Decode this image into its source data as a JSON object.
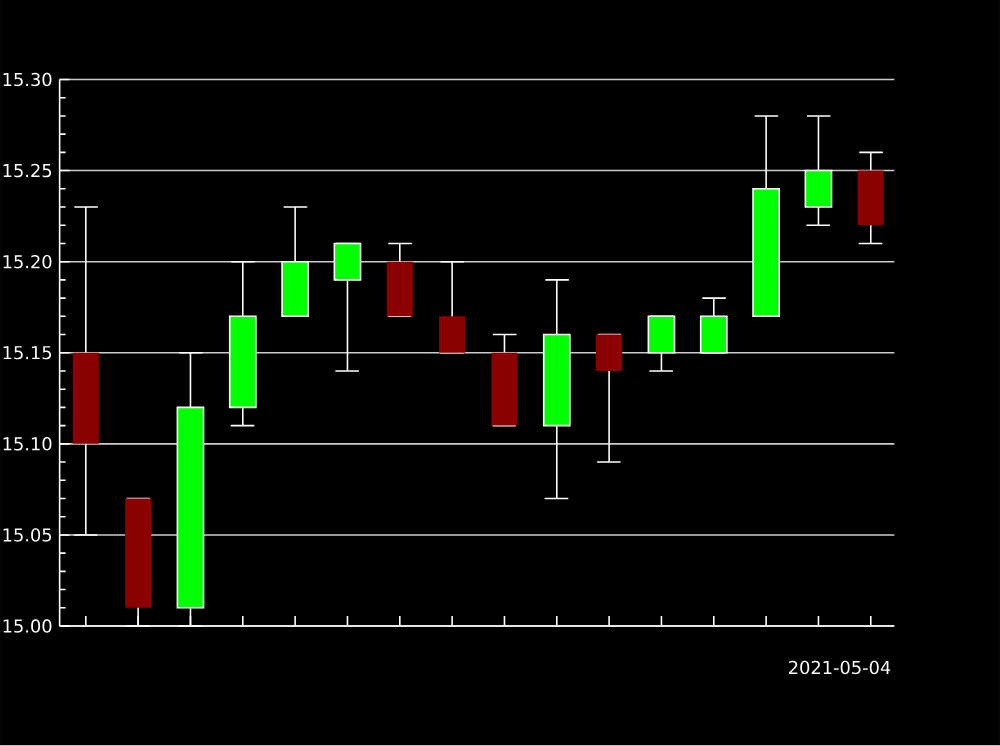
{
  "chart_data": {
    "type": "candlestick",
    "xlabel": "2021-05-04",
    "categories": [
      null,
      null,
      null,
      null,
      null,
      null,
      null,
      null,
      null,
      null,
      null,
      null,
      null,
      null,
      null,
      null
    ],
    "ohlc": [
      [
        15.15,
        15.23,
        15.05,
        15.1
      ],
      [
        15.07,
        15.07,
        15.0,
        15.01
      ],
      [
        15.01,
        15.15,
        15.0,
        15.12
      ],
      [
        15.12,
        15.2,
        15.11,
        15.17
      ],
      [
        15.17,
        15.23,
        15.17,
        15.2
      ],
      [
        15.19,
        15.21,
        15.14,
        15.21
      ],
      [
        15.2,
        15.21,
        15.17,
        15.17
      ],
      [
        15.17,
        15.2,
        15.15,
        15.15
      ],
      [
        15.15,
        15.16,
        15.11,
        15.11
      ],
      [
        15.11,
        15.19,
        15.07,
        15.16
      ],
      [
        15.16,
        15.16,
        15.09,
        15.14
      ],
      [
        15.15,
        15.17,
        15.14,
        15.17
      ],
      [
        15.15,
        15.18,
        15.15,
        15.17
      ],
      [
        15.17,
        15.28,
        15.17,
        15.24
      ],
      [
        15.23,
        15.28,
        15.22,
        15.25
      ],
      [
        15.25,
        15.26,
        15.21,
        15.22
      ]
    ],
    "colors": [
      "#8b0000",
      "#8b0000",
      "#00ff00",
      "#00ff00",
      "#00ff00",
      "#00ff00",
      "#8b0000",
      "#8b0000",
      "#8b0000",
      "#00ff00",
      "#8b0000",
      "#00ff00",
      "#00ff00",
      "#00ff00",
      "#00ff00",
      "#8b0000"
    ],
    "ylim": [
      15.0,
      15.3
    ],
    "yticks": [
      {
        "value": 15.0,
        "label": "15.00"
      },
      {
        "value": 15.05,
        "label": "15.05"
      },
      {
        "value": 15.1,
        "label": "15.10"
      },
      {
        "value": 15.15,
        "label": "15.15"
      },
      {
        "value": 15.2,
        "label": "15.20"
      },
      {
        "value": 15.25,
        "label": "15.25"
      },
      {
        "value": 15.3,
        "label": "15.30"
      }
    ],
    "grid": "y",
    "tick_labels": "y"
  }
}
